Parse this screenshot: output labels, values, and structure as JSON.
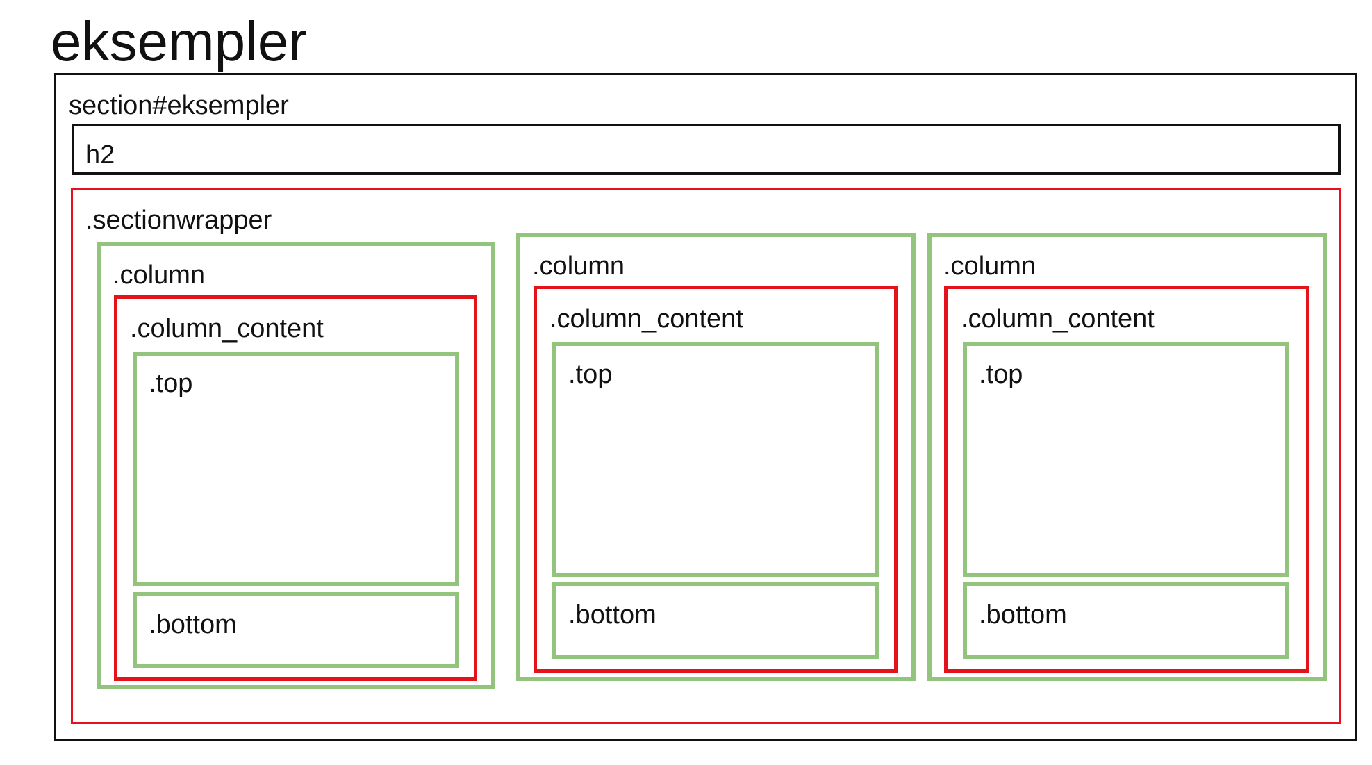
{
  "diagram": {
    "title": "eksempler",
    "section_label": "section#eksempler",
    "h2_label": "h2",
    "wrapper_label": ".sectionwrapper",
    "columns": [
      {
        "label": ".column",
        "content_label": ".column_content",
        "top_label": ".top",
        "bottom_label": ".bottom"
      },
      {
        "label": ".column",
        "content_label": ".column_content",
        "top_label": ".top",
        "bottom_label": ".bottom"
      },
      {
        "label": ".column",
        "content_label": ".column_content",
        "top_label": ".top",
        "bottom_label": ".bottom"
      }
    ],
    "colors": {
      "section_border": "#111111",
      "wrapper_border": "#e3121b",
      "column_border": "#93c47d",
      "content_border": "#e3121b"
    }
  }
}
